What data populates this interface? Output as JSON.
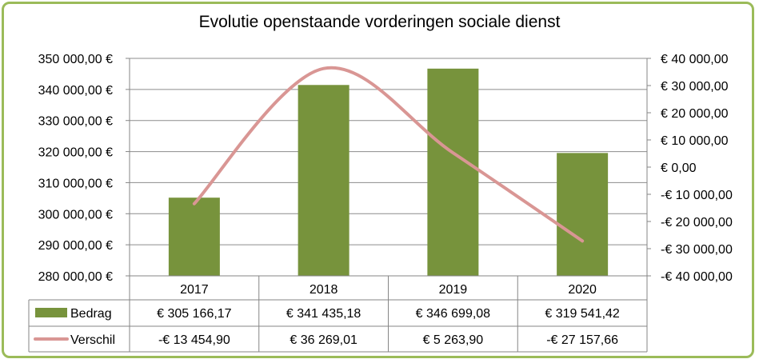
{
  "chart_data": {
    "type": "bar",
    "title": "Evolutie openstaande vorderingen sociale dienst",
    "categories": [
      "2017",
      "2018",
      "2019",
      "2020"
    ],
    "series": [
      {
        "name": "Bedrag",
        "type": "bar",
        "axis": "left",
        "color": "#77933c",
        "values": [
          305166.17,
          341435.18,
          346699.08,
          319541.42
        ],
        "labels": [
          "€ 305 166,17",
          "€ 341 435,18",
          "€ 346 699,08",
          "€ 319 541,42"
        ]
      },
      {
        "name": "Verschil",
        "type": "line",
        "axis": "right",
        "color": "#d99694",
        "values": [
          -13454.9,
          36269.01,
          5263.9,
          -27157.66
        ],
        "labels": [
          "-€ 13 454,90",
          "€ 36 269,01",
          "€ 5 263,90",
          "-€ 27 157,66"
        ]
      }
    ],
    "left_axis": {
      "ylim": [
        280000,
        350000
      ],
      "ticks": [
        280000,
        290000,
        300000,
        310000,
        320000,
        330000,
        340000,
        350000
      ],
      "tick_labels": [
        "280 000,00 €",
        "290 000,00 €",
        "300 000,00 €",
        "310 000,00 €",
        "320 000,00 €",
        "330 000,00 €",
        "340 000,00 €",
        "350 000,00 €"
      ]
    },
    "right_axis": {
      "ylim": [
        -40000,
        40000
      ],
      "ticks": [
        -40000,
        -30000,
        -20000,
        -10000,
        0,
        10000,
        20000,
        30000,
        40000
      ],
      "tick_labels": [
        "-€ 40 000,00",
        "-€ 30 000,00",
        "-€ 20 000,00",
        "-€ 10 000,00",
        "€  0,00",
        "€ 10 000,00",
        "€ 20 000,00",
        "€ 30 000,00",
        "€ 40 000,00"
      ]
    },
    "grid": true,
    "legend": "data-table"
  }
}
